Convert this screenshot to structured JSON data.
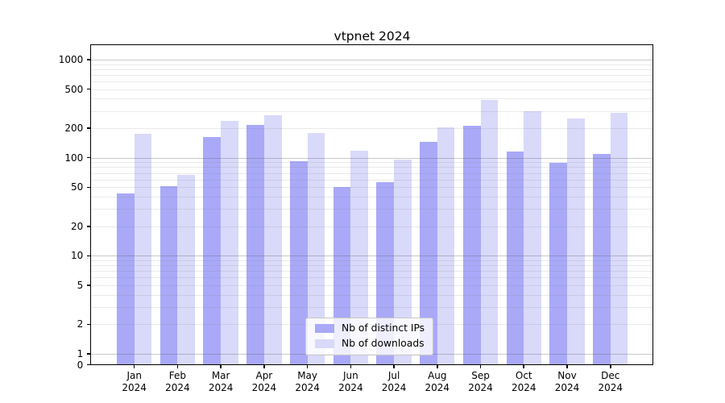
{
  "title": "vtpnet 2024",
  "chart_data": {
    "type": "bar",
    "title": "vtpnet 2024",
    "year": "2024",
    "categories": [
      "Jan",
      "Feb",
      "Mar",
      "Apr",
      "May",
      "Jun",
      "Jul",
      "Aug",
      "Sep",
      "Oct",
      "Nov",
      "Dec"
    ],
    "series": [
      {
        "name": "Nb of distinct IPs",
        "color": "#a9a9f8",
        "values": [
          43,
          51,
          162,
          215,
          93,
          50,
          56,
          145,
          210,
          116,
          88,
          110
        ]
      },
      {
        "name": "Nb of downloads",
        "color": "#d9d9fa",
        "values": [
          175,
          67,
          237,
          270,
          178,
          118,
          95,
          205,
          385,
          300,
          250,
          285
        ]
      }
    ],
    "yscale": "symlog",
    "yticks": [
      0,
      1,
      2,
      5,
      10,
      20,
      50,
      100,
      200,
      500,
      1000
    ],
    "ylim": [
      0,
      1400
    ],
    "xlabel": "",
    "ylabel": "",
    "grid": true,
    "legend_position": "lower center"
  }
}
